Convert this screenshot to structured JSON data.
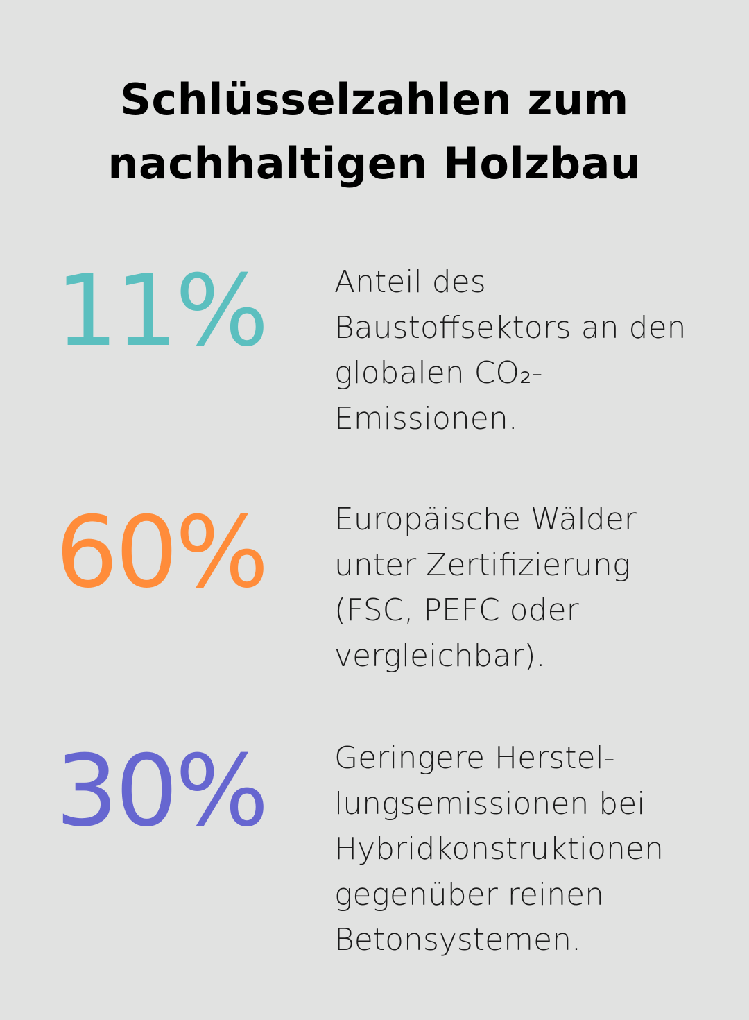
{
  "title": {
    "line1": "Schlüsselzahlen zum",
    "line2": "nachhaltigen Holzbau"
  },
  "stats": [
    {
      "value": "11%",
      "color": "#5bbfbf",
      "lines": [
        "Anteil des",
        "Baustoffsektors an den",
        "globalen CO₂-",
        "Emissionen."
      ]
    },
    {
      "value": "60%",
      "color": "#ff8c3a",
      "lines": [
        "Europäische Wälder",
        "unter Zertifizierung",
        "(FSC, PEFC oder",
        "vergleichbar)."
      ]
    },
    {
      "value": "30%",
      "color": "#6666d0",
      "lines": [
        "Geringere Herstel-",
        "lungsemissionen bei",
        "Hybridkonstruktionen",
        "gegenüber reinen",
        "Betonsystemen."
      ]
    }
  ]
}
